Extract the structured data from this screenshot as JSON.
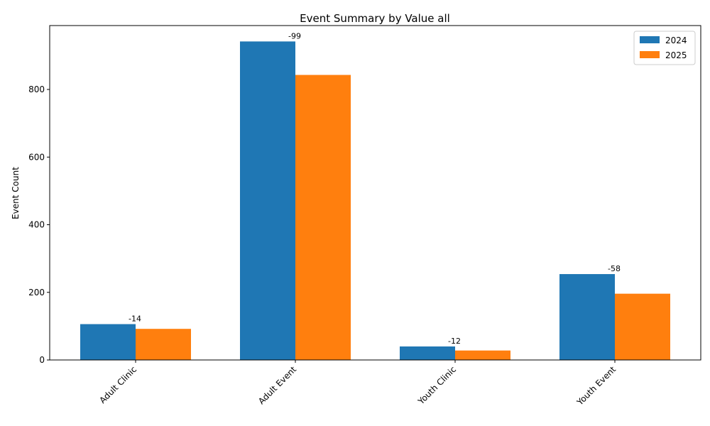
{
  "chart_data": {
    "type": "bar",
    "title": "Event Summary by Value all",
    "xlabel": "",
    "ylabel": "Event Count",
    "categories": [
      "Adult Clinic",
      "Adult Event",
      "Youth Clinic",
      "Youth Event"
    ],
    "series": [
      {
        "name": "2024",
        "color": "#1f77b4",
        "values": [
          106,
          942,
          40,
          254
        ]
      },
      {
        "name": "2025",
        "color": "#ff7f0e",
        "values": [
          92,
          843,
          28,
          196
        ]
      }
    ],
    "annotations": [
      "-14",
      "-99",
      "-12",
      "-58"
    ],
    "ylim": [
      0,
      989
    ],
    "yticks": [
      0,
      200,
      400,
      600,
      800
    ],
    "grid": false,
    "legend_position": "top-right"
  }
}
